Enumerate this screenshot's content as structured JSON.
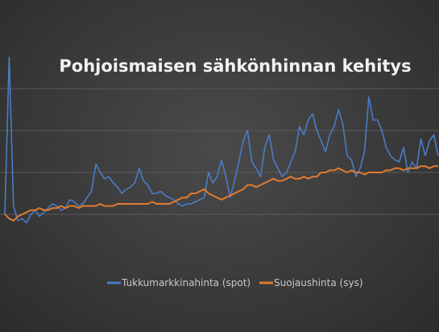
{
  "chart_data": {
    "type": "line",
    "title": "Pohjoismaisen sähkönhinnan kehitys",
    "xlabel": "",
    "ylabel": "",
    "ylim": [
      0,
      100
    ],
    "grid": true,
    "legend_position": "bottom",
    "x": [
      0,
      2,
      4,
      6,
      8,
      10,
      12,
      14,
      16,
      18,
      20,
      22,
      24,
      26,
      28,
      30,
      32,
      34,
      36,
      38,
      40,
      42,
      44,
      46,
      48,
      50,
      52,
      54,
      56,
      58,
      60,
      62,
      64,
      66,
      68,
      70,
      72,
      74,
      76,
      78,
      80,
      82,
      84,
      86,
      88,
      90,
      92,
      94,
      96,
      98,
      100,
      102,
      104,
      106,
      108,
      110,
      112,
      114,
      116,
      118,
      120,
      122,
      124,
      126,
      128,
      130,
      132,
      134,
      136,
      138,
      140,
      142,
      144,
      146,
      148,
      150,
      152,
      154,
      156,
      158,
      160,
      162,
      164,
      166,
      168,
      170,
      172,
      174,
      176,
      178,
      180,
      182,
      184,
      186,
      188,
      190,
      192,
      194,
      196,
      198,
      200
    ],
    "series": [
      {
        "name": "Tukkumarkkinahinta (spot)",
        "color": "#4a7cc7",
        "values": [
          20,
          95,
          24,
          17,
          18,
          16,
          20,
          22,
          19,
          21,
          23,
          25,
          24,
          22,
          23,
          27,
          26,
          24,
          25,
          28,
          31,
          44,
          40,
          37,
          38,
          35,
          33,
          30,
          32,
          33,
          35,
          42,
          36,
          34,
          30,
          30,
          31,
          29,
          28,
          27,
          25,
          24,
          25,
          25,
          26,
          27,
          28,
          40,
          35,
          38,
          46,
          38,
          28,
          36,
          45,
          55,
          60,
          45,
          42,
          38,
          52,
          58,
          46,
          42,
          38,
          40,
          45,
          50,
          62,
          58,
          65,
          68,
          60,
          55,
          50,
          58,
          62,
          70,
          63,
          48,
          46,
          38,
          42,
          50,
          76,
          65,
          65,
          60,
          52,
          48,
          46,
          45,
          52,
          40,
          45,
          42,
          56,
          48,
          55,
          58,
          48
        ]
      },
      {
        "name": "Suojaushinta (sys)",
        "color": "#e07b30",
        "values": [
          20,
          18,
          17,
          19,
          20,
          21,
          22,
          22,
          23,
          22,
          22,
          23,
          23,
          24,
          23,
          24,
          24,
          23,
          24,
          24,
          24,
          24,
          25,
          24,
          24,
          24,
          25,
          25,
          25,
          25,
          25,
          25,
          25,
          25,
          26,
          25,
          25,
          25,
          25,
          26,
          27,
          28,
          28,
          30,
          30,
          31,
          32,
          30,
          29,
          28,
          27,
          28,
          29,
          30,
          31,
          32,
          34,
          34,
          33,
          34,
          35,
          36,
          37,
          36,
          36,
          37,
          38,
          37,
          37,
          38,
          37,
          38,
          38,
          40,
          40,
          41,
          41,
          42,
          41,
          40,
          41,
          40,
          40,
          39,
          40,
          40,
          40,
          40,
          41,
          41,
          42,
          42,
          41,
          42,
          42,
          42,
          43,
          43,
          42,
          43,
          43
        ]
      }
    ]
  }
}
